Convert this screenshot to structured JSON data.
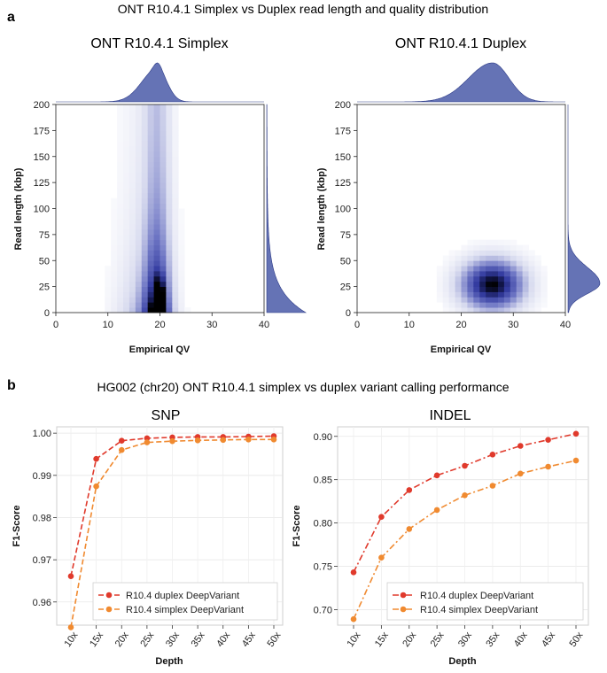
{
  "panel_a": {
    "letter": "a",
    "title": "ONT R10.4.1 Simplex vs Duplex read length and quality distribution"
  },
  "panel_b": {
    "letter": "b",
    "title": "HG002 (chr20) ONT R10.4.1 simplex vs duplex variant calling performance"
  },
  "colors": {
    "density": "#3f48a8",
    "marginal": "#4a5aa8",
    "duplex": "#e03a2c",
    "simplex": "#f08a30"
  },
  "chart_data": [
    {
      "id": "simplex-density",
      "type": "heatmap",
      "title": "ONT R10.4.1 Simplex",
      "xlabel": "Empirical QV",
      "ylabel": "Read length (kbp)",
      "xlim": [
        0,
        40
      ],
      "ylim": [
        0,
        200
      ],
      "xticks": [
        0,
        10,
        20,
        30,
        40
      ],
      "yticks": [
        0,
        25,
        50,
        75,
        100,
        125,
        150,
        175,
        200
      ],
      "x_mode": 19.5,
      "y_mode": 20,
      "marginal_x_peak_qv": 19.5,
      "marginal_y_peak_kbp": 5
    },
    {
      "id": "duplex-density",
      "type": "heatmap",
      "title": "ONT R10.4.1 Duplex",
      "xlabel": "Empirical QV",
      "ylabel": "Read length (kbp)",
      "xlim": [
        0,
        40
      ],
      "ylim": [
        0,
        200
      ],
      "xticks": [
        0,
        10,
        20,
        30,
        40
      ],
      "yticks": [
        0,
        25,
        50,
        75,
        100,
        125,
        150,
        175,
        200
      ],
      "x_mode": 26,
      "y_mode": 27,
      "marginal_x_peak_qv": 26,
      "marginal_y_peak_kbp": 28
    },
    {
      "id": "snp",
      "type": "line",
      "title": "SNP",
      "xlabel": "Depth",
      "ylabel": "F1-Score",
      "categories": [
        "10x",
        "15x",
        "20x",
        "25x",
        "30x",
        "35x",
        "40x",
        "45x",
        "50x"
      ],
      "ylim": [
        0.9545,
        1.0015
      ],
      "yticks": [
        "0.96",
        "0.97",
        "0.98",
        "0.99",
        "1.00"
      ],
      "ytick_values": [
        0.96,
        0.97,
        0.98,
        0.99,
        1.0
      ],
      "series": [
        {
          "name": "R10.4 duplex DeepVariant",
          "style": "dash",
          "values": [
            0.9661,
            0.9939,
            0.9982,
            0.9988,
            0.999,
            0.9991,
            0.9991,
            0.9992,
            0.9993
          ]
        },
        {
          "name": "R10.4 simplex DeepVariant",
          "style": "dash",
          "values": [
            0.954,
            0.9874,
            0.996,
            0.9978,
            0.9981,
            0.9983,
            0.9984,
            0.9985,
            0.9985
          ]
        }
      ],
      "legend": "bottom-right"
    },
    {
      "id": "indel",
      "type": "line",
      "title": "INDEL",
      "xlabel": "Depth",
      "ylabel": "F1-Score",
      "categories": [
        "10x",
        "15x",
        "20x",
        "25x",
        "30x",
        "35x",
        "40x",
        "45x",
        "50x"
      ],
      "ylim": [
        0.682,
        0.911
      ],
      "yticks": [
        "0.70",
        "0.75",
        "0.80",
        "0.85",
        "0.90"
      ],
      "ytick_values": [
        0.7,
        0.75,
        0.8,
        0.85,
        0.9
      ],
      "series": [
        {
          "name": "R10.4 duplex DeepVariant",
          "style": "dashdot",
          "values": [
            0.743,
            0.807,
            0.838,
            0.855,
            0.866,
            0.879,
            0.889,
            0.896,
            0.903
          ]
        },
        {
          "name": "R10.4 simplex DeepVariant",
          "style": "dashdot",
          "values": [
            0.689,
            0.76,
            0.793,
            0.815,
            0.832,
            0.843,
            0.857,
            0.865,
            0.872
          ]
        }
      ],
      "legend": "bottom-right"
    }
  ]
}
